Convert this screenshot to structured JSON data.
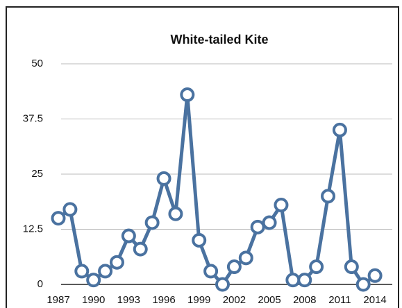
{
  "chart_data": {
    "type": "line",
    "title": "White-tailed Kite",
    "x": [
      1987,
      1988,
      1989,
      1990,
      1991,
      1992,
      1993,
      1994,
      1995,
      1996,
      1997,
      1998,
      1999,
      2000,
      2001,
      2002,
      2003,
      2004,
      2005,
      2006,
      2007,
      2008,
      2009,
      2010,
      2011,
      2012,
      2013,
      2014
    ],
    "values": [
      15,
      17,
      3,
      1,
      3,
      5,
      11,
      8,
      14,
      24,
      16,
      43,
      10,
      3,
      0,
      4,
      6,
      13,
      14,
      18,
      1,
      1,
      4,
      20,
      35,
      4,
      0,
      2
    ],
    "color": "#4a72a0",
    "xlim": [
      1987,
      2015
    ],
    "xticks": [
      1987,
      1990,
      1993,
      1996,
      1999,
      2002,
      2005,
      2008,
      2011,
      2014
    ],
    "ylim": [
      0,
      50
    ],
    "yticks": [
      0,
      12.5,
      25,
      37.5,
      50
    ],
    "grid": true
  }
}
